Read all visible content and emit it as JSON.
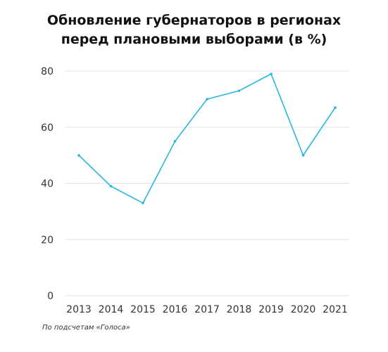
{
  "chart_data": {
    "type": "line",
    "title_lines": [
      "Обновление губернаторов в регионах",
      "перед плановыми выборами (в %)"
    ],
    "categories": [
      "2013",
      "2014",
      "2015",
      "2016",
      "2017",
      "2018",
      "2019",
      "2020",
      "2021"
    ],
    "series": [
      {
        "values": [
          50,
          39,
          33,
          55,
          70,
          73,
          79,
          50,
          67
        ]
      }
    ],
    "y_ticks": [
      "0",
      "20",
      "40",
      "60",
      "80"
    ],
    "ylim": [
      0,
      80
    ],
    "grid": true,
    "line_color": "#29b6e0",
    "grid_color": "#e6e6e6",
    "source": "По подсчетам «Голоса»"
  }
}
